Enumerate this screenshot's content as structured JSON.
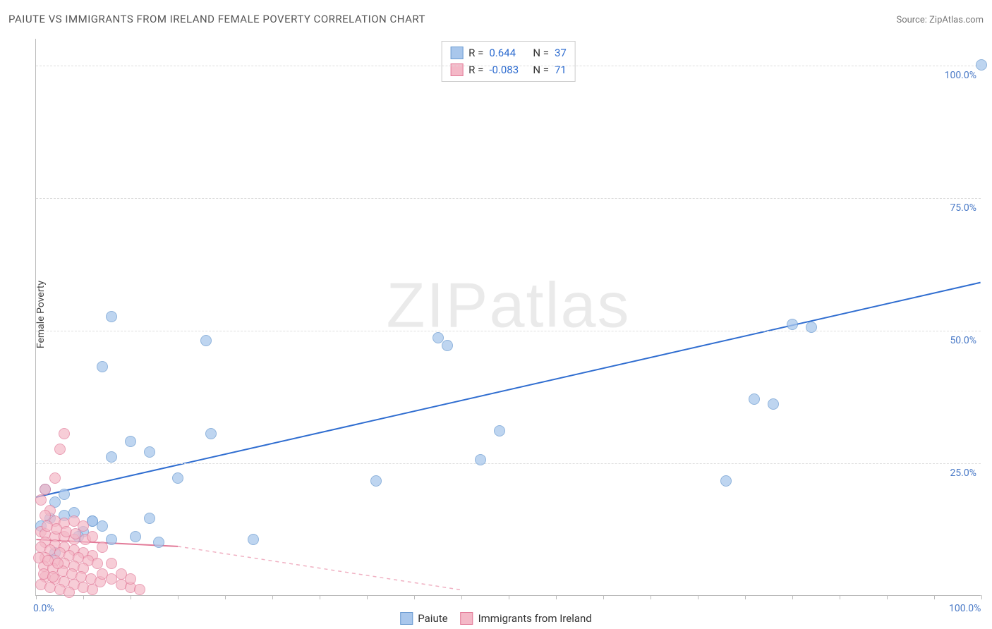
{
  "title": "PAIUTE VS IMMIGRANTS FROM IRELAND FEMALE POVERTY CORRELATION CHART",
  "source_prefix": "Source: ",
  "source_name": "ZipAtlas.com",
  "y_axis_title": "Female Poverty",
  "watermark": "ZIPatlas",
  "chart": {
    "type": "scatter",
    "xlim": [
      0,
      100
    ],
    "ylim": [
      0,
      105
    ],
    "x_ticks": [
      0,
      5,
      10,
      15,
      20,
      25,
      30,
      35,
      40,
      45,
      50,
      55,
      60,
      65,
      70,
      75,
      80,
      85,
      90,
      95,
      100
    ],
    "y_gridlines": [
      25,
      50,
      75,
      100
    ],
    "x_tick_labels": {
      "0": "0.0%",
      "100": "100.0%"
    },
    "y_tick_labels": {
      "25": "25.0%",
      "50": "50.0%",
      "75": "75.0%",
      "100": "100.0%"
    },
    "grid_color": "#dddddd",
    "axis_color": "#bbbbbb",
    "label_color": "#4a7ac7",
    "label_fontsize": 14,
    "background_color": "#ffffff",
    "series": [
      {
        "name": "Paiute",
        "color_fill": "#a9c7ec",
        "color_stroke": "#6b9bd1",
        "opacity": 0.75,
        "marker_radius": 8,
        "r": 0.644,
        "n": 37,
        "trend": {
          "x1": 0,
          "y1": 18.5,
          "x2": 100,
          "y2": 59,
          "stroke": "#2f6dd0",
          "width": 2,
          "dash": "none"
        },
        "points": [
          [
            100,
            100
          ],
          [
            80,
            51
          ],
          [
            82,
            50.5
          ],
          [
            76,
            37
          ],
          [
            78,
            36
          ],
          [
            73,
            21.5
          ],
          [
            49,
            31
          ],
          [
            47,
            25.5
          ],
          [
            42.5,
            48.5
          ],
          [
            43.5,
            47
          ],
          [
            36,
            21.5
          ],
          [
            23,
            10.5
          ],
          [
            18,
            48
          ],
          [
            18.5,
            30.5
          ],
          [
            8,
            52.5
          ],
          [
            7,
            43
          ],
          [
            10,
            29
          ],
          [
            8,
            26
          ],
          [
            12,
            27
          ],
          [
            15,
            22
          ],
          [
            1,
            20
          ],
          [
            2,
            17.5
          ],
          [
            3,
            19
          ],
          [
            0.5,
            13
          ],
          [
            1.5,
            14.5
          ],
          [
            3,
            15
          ],
          [
            4,
            15.5
          ],
          [
            5,
            12
          ],
          [
            6,
            14
          ],
          [
            7,
            13
          ],
          [
            8,
            10.5
          ],
          [
            10.5,
            11
          ],
          [
            12,
            14.5
          ],
          [
            13,
            10
          ],
          [
            4.5,
            11
          ],
          [
            2,
            8
          ],
          [
            6,
            14
          ]
        ]
      },
      {
        "name": "Immigrants from Ireland",
        "color_fill": "#f4b8c7",
        "color_stroke": "#e27a98",
        "opacity": 0.7,
        "marker_radius": 8,
        "r": -0.083,
        "n": 71,
        "trend_solid": {
          "x1": 0,
          "y1": 10.5,
          "x2": 15,
          "y2": 9.2,
          "stroke": "#e27a98",
          "width": 2
        },
        "trend_dash": {
          "x1": 15,
          "y1": 9.2,
          "x2": 45,
          "y2": 1,
          "stroke": "#f0b0c2",
          "width": 1.5,
          "dash": "5,5"
        },
        "points": [
          [
            3,
            30.5
          ],
          [
            2.5,
            27.5
          ],
          [
            2,
            22
          ],
          [
            1,
            20
          ],
          [
            0.5,
            18
          ],
          [
            1.5,
            16
          ],
          [
            1,
            15
          ],
          [
            2,
            14
          ],
          [
            3,
            13.5
          ],
          [
            0.5,
            12
          ],
          [
            1,
            11.5
          ],
          [
            2,
            11
          ],
          [
            3,
            11
          ],
          [
            4,
            10.5
          ],
          [
            1,
            10
          ],
          [
            2,
            9.5
          ],
          [
            3,
            9
          ],
          [
            4,
            8.5
          ],
          [
            5,
            8
          ],
          [
            6,
            7.5
          ],
          [
            0.5,
            9
          ],
          [
            1.5,
            8.5
          ],
          [
            2.5,
            8
          ],
          [
            3.5,
            7.5
          ],
          [
            4.5,
            7
          ],
          [
            5.5,
            6.5
          ],
          [
            6.5,
            6
          ],
          [
            1,
            7
          ],
          [
            2,
            6.5
          ],
          [
            3,
            6
          ],
          [
            4,
            5.5
          ],
          [
            5,
            5
          ],
          [
            0.8,
            5.5
          ],
          [
            1.8,
            5
          ],
          [
            2.8,
            4.5
          ],
          [
            3.8,
            4
          ],
          [
            4.8,
            3.5
          ],
          [
            5.8,
            3
          ],
          [
            6.8,
            2.5
          ],
          [
            1,
            3.5
          ],
          [
            2,
            3
          ],
          [
            3,
            2.5
          ],
          [
            4,
            2
          ],
          [
            5,
            1.5
          ],
          [
            6,
            1
          ],
          [
            7,
            4
          ],
          [
            8,
            3
          ],
          [
            9,
            2
          ],
          [
            10,
            1.5
          ],
          [
            11,
            1
          ],
          [
            0.5,
            2
          ],
          [
            1.5,
            1.5
          ],
          [
            2.5,
            1
          ],
          [
            3.5,
            0.5
          ],
          [
            1.2,
            13
          ],
          [
            2.2,
            12.5
          ],
          [
            3.2,
            12
          ],
          [
            4.2,
            11.5
          ],
          [
            5.2,
            10.5
          ],
          [
            0.3,
            7
          ],
          [
            1.3,
            6.5
          ],
          [
            2.3,
            6
          ],
          [
            0.8,
            4
          ],
          [
            1.8,
            3.5
          ],
          [
            4,
            14
          ],
          [
            5,
            13
          ],
          [
            6,
            11
          ],
          [
            7,
            9
          ],
          [
            8,
            6
          ],
          [
            9,
            4
          ],
          [
            10,
            3
          ]
        ]
      }
    ]
  },
  "legend": {
    "series1_label": "Paiute",
    "series2_label": "Immigrants from Ireland"
  },
  "stats_labels": {
    "r": "R =",
    "n": "N ="
  }
}
